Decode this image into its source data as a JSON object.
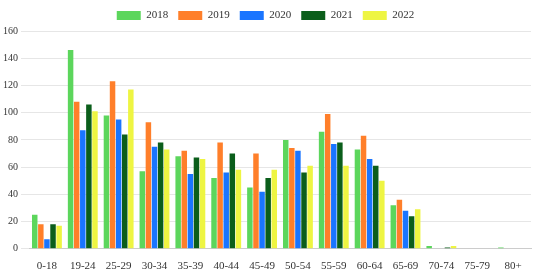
{
  "chart_data": {
    "type": "bar",
    "categories": [
      "0-18",
      "19-24",
      "25-29",
      "30-34",
      "35-39",
      "40-44",
      "45-49",
      "50-54",
      "55-59",
      "60-64",
      "65-69",
      "70-74",
      "75-79",
      "80+"
    ],
    "series": [
      {
        "name": "2018",
        "color": "#5cd65c",
        "values": [
          25,
          146,
          98,
          57,
          68,
          52,
          45,
          80,
          86,
          73,
          32,
          2,
          0,
          1
        ]
      },
      {
        "name": "2019",
        "color": "#ff7f2a",
        "values": [
          18,
          108,
          123,
          93,
          72,
          78,
          70,
          74,
          99,
          83,
          36,
          0,
          0,
          0
        ]
      },
      {
        "name": "2020",
        "color": "#1a75ff",
        "values": [
          7,
          87,
          95,
          75,
          55,
          56,
          42,
          72,
          77,
          66,
          28,
          0,
          0,
          0
        ]
      },
      {
        "name": "2021",
        "color": "#0b5e1b",
        "values": [
          18,
          106,
          84,
          78,
          67,
          70,
          52,
          56,
          78,
          61,
          24,
          1,
          0,
          0
        ]
      },
      {
        "name": "2022",
        "color": "#eef542",
        "values": [
          17,
          101,
          117,
          73,
          66,
          58,
          58,
          61,
          61,
          50,
          29,
          2,
          0,
          0
        ]
      }
    ],
    "ylim": [
      0,
      160
    ],
    "yticks": [
      0,
      20,
      40,
      60,
      80,
      100,
      120,
      140,
      160
    ],
    "grid": true,
    "legend": "top"
  }
}
